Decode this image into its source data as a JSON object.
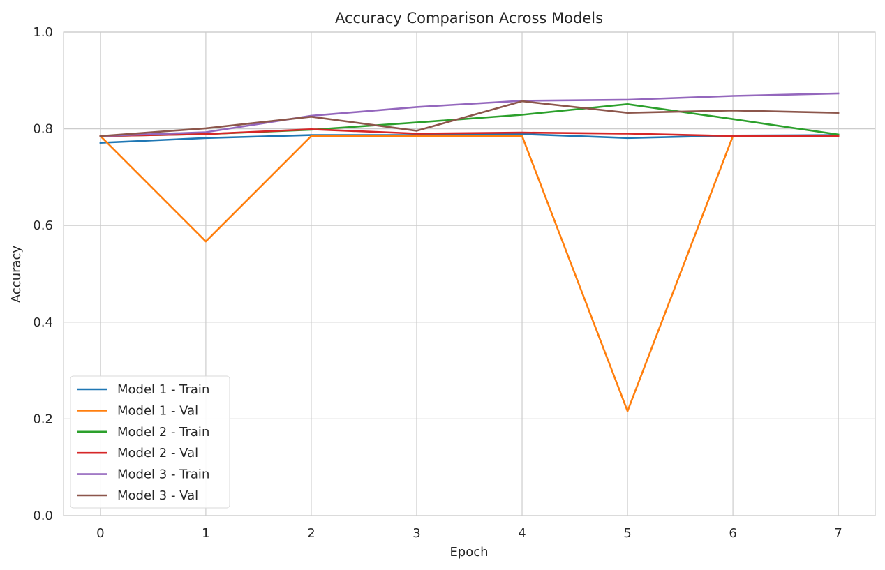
{
  "chart_data": {
    "type": "line",
    "title": "Accuracy Comparison Across Models",
    "xlabel": "Epoch",
    "ylabel": "Accuracy",
    "xlim": [
      -0.35,
      7.35
    ],
    "ylim": [
      0.0,
      1.0
    ],
    "x": [
      0,
      1,
      2,
      3,
      4,
      5,
      6,
      7
    ],
    "x_ticks": [
      "0",
      "1",
      "2",
      "3",
      "4",
      "5",
      "6",
      "7"
    ],
    "y_ticks": [
      "0.0",
      "0.2",
      "0.4",
      "0.6",
      "0.8",
      "1.0"
    ],
    "grid": true,
    "legend_position": "lower-left",
    "series": [
      {
        "name": "Model 1 - Train",
        "color": "#1f77b4",
        "values": [
          0.771,
          0.781,
          0.787,
          0.787,
          0.789,
          0.781,
          0.786,
          0.787
        ]
      },
      {
        "name": "Model 1 - Val",
        "color": "#ff7f0e",
        "values": [
          0.785,
          0.567,
          0.785,
          0.785,
          0.785,
          0.216,
          0.785,
          0.785
        ]
      },
      {
        "name": "Model 2 - Train",
        "color": "#2ca02c",
        "values": [
          0.785,
          0.789,
          0.798,
          0.813,
          0.829,
          0.851,
          0.82,
          0.788
        ]
      },
      {
        "name": "Model 2 - Val",
        "color": "#d62728",
        "values": [
          0.785,
          0.789,
          0.799,
          0.79,
          0.792,
          0.79,
          0.785,
          0.785
        ]
      },
      {
        "name": "Model 3 - Train",
        "color": "#9467bd",
        "values": [
          0.785,
          0.793,
          0.827,
          0.845,
          0.858,
          0.86,
          0.868,
          0.873
        ]
      },
      {
        "name": "Model 3 - Val",
        "color": "#8c564b",
        "values": [
          0.785,
          0.801,
          0.825,
          0.796,
          0.857,
          0.833,
          0.838,
          0.833
        ]
      }
    ]
  }
}
